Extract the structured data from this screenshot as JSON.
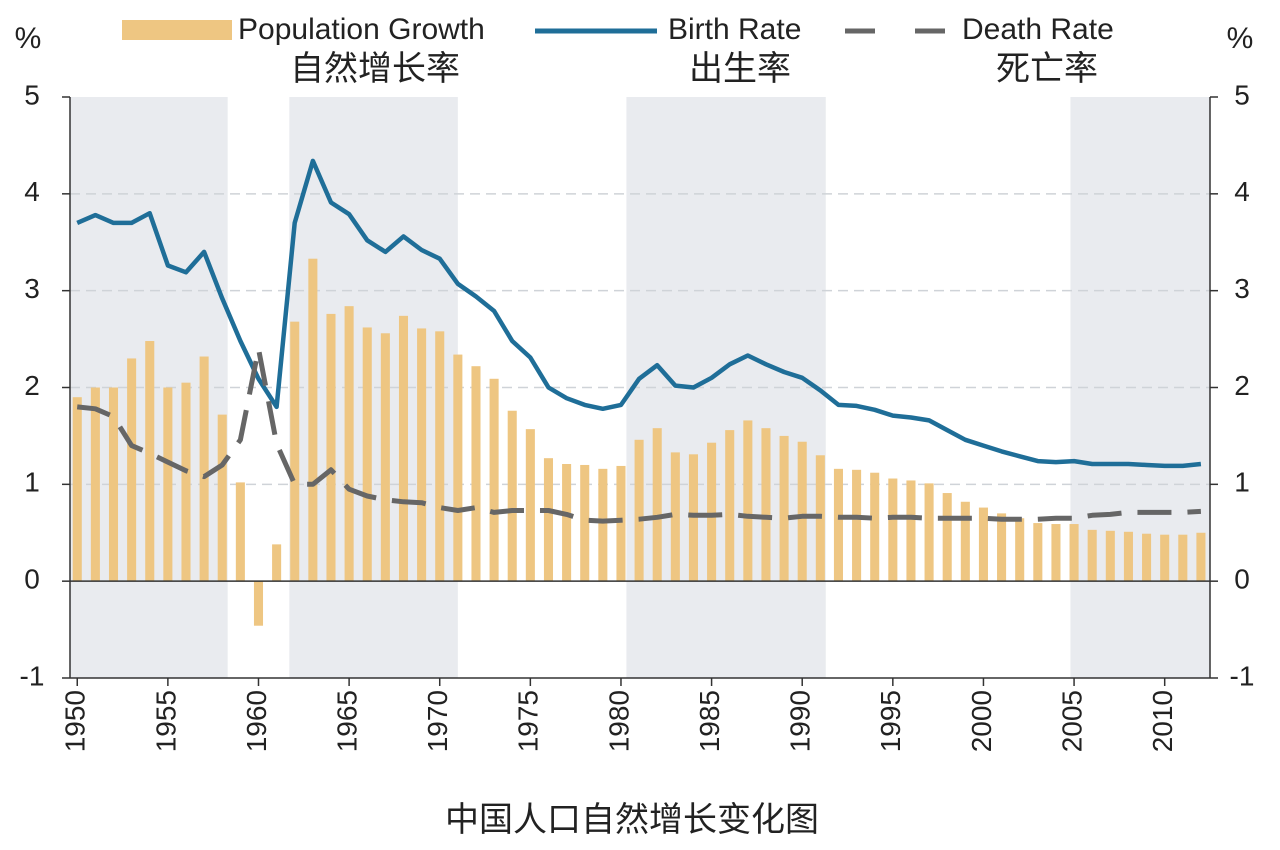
{
  "chart_data": {
    "type": "combo",
    "title": "中国人口自然增长变化图",
    "y_label": "%",
    "y2_label": "%",
    "x": [
      1950,
      1951,
      1952,
      1953,
      1954,
      1955,
      1956,
      1957,
      1958,
      1959,
      1960,
      1961,
      1962,
      1963,
      1964,
      1965,
      1966,
      1967,
      1968,
      1969,
      1970,
      1971,
      1972,
      1973,
      1974,
      1975,
      1976,
      1977,
      1978,
      1979,
      1980,
      1981,
      1982,
      1983,
      1984,
      1985,
      1986,
      1987,
      1988,
      1989,
      1990,
      1991,
      1992,
      1993,
      1994,
      1995,
      1996,
      1997,
      1998,
      1999,
      2000,
      2001,
      2002,
      2003,
      2004,
      2005,
      2006,
      2007,
      2008,
      2009,
      2010,
      2011,
      2012
    ],
    "xlim": [
      1949.6,
      2012.5
    ],
    "xticks": [
      1950,
      1955,
      1960,
      1965,
      1970,
      1975,
      1980,
      1985,
      1990,
      1995,
      2000,
      2005,
      2010
    ],
    "ylim": [
      -1,
      5
    ],
    "yticks": [
      -1,
      0,
      1,
      2,
      3,
      4,
      5
    ],
    "y2lim": [
      -1,
      5
    ],
    "y2ticks": [
      -1,
      0,
      1,
      2,
      3,
      4,
      5
    ],
    "grid": true,
    "shaded_spans": [
      [
        1949.6,
        1958.3
      ],
      [
        1961.7,
        1971.0
      ],
      [
        1980.3,
        1991.3
      ],
      [
        2004.8,
        2012.5
      ]
    ],
    "series": [
      {
        "name": "Population Growth",
        "name_zh": "自然增长率",
        "kind": "bar",
        "color": "#eec682",
        "values": [
          1.9,
          2.0,
          2.0,
          2.3,
          2.48,
          2.0,
          2.05,
          2.32,
          1.72,
          1.02,
          -0.46,
          0.38,
          2.68,
          3.33,
          2.76,
          2.84,
          2.62,
          2.56,
          2.74,
          2.61,
          2.58,
          2.34,
          2.22,
          2.09,
          1.76,
          1.57,
          1.27,
          1.21,
          1.2,
          1.16,
          1.19,
          1.46,
          1.58,
          1.33,
          1.31,
          1.43,
          1.56,
          1.66,
          1.58,
          1.5,
          1.44,
          1.3,
          1.16,
          1.15,
          1.12,
          1.06,
          1.04,
          1.01,
          0.91,
          0.82,
          0.76,
          0.7,
          0.65,
          0.6,
          0.59,
          0.59,
          0.53,
          0.52,
          0.51,
          0.49,
          0.48,
          0.48,
          0.5
        ]
      },
      {
        "name": "Birth Rate",
        "name_zh": "出生率",
        "kind": "line",
        "color": "#1f6e98",
        "values": [
          3.7,
          3.78,
          3.7,
          3.7,
          3.8,
          3.26,
          3.19,
          3.4,
          2.92,
          2.48,
          2.09,
          1.8,
          3.7,
          4.34,
          3.91,
          3.79,
          3.52,
          3.4,
          3.56,
          3.42,
          3.33,
          3.07,
          2.94,
          2.79,
          2.48,
          2.31,
          2.0,
          1.89,
          1.82,
          1.78,
          1.82,
          2.09,
          2.23,
          2.02,
          2.0,
          2.1,
          2.24,
          2.33,
          2.24,
          2.16,
          2.1,
          1.97,
          1.82,
          1.81,
          1.77,
          1.71,
          1.69,
          1.66,
          1.56,
          1.46,
          1.4,
          1.34,
          1.29,
          1.24,
          1.23,
          1.24,
          1.21,
          1.21,
          1.21,
          1.2,
          1.19,
          1.19,
          1.21
        ]
      },
      {
        "name": "Death Rate",
        "name_zh": "死亡率",
        "kind": "dashed",
        "color": "#666666",
        "values": [
          1.8,
          1.78,
          1.7,
          1.4,
          1.32,
          1.23,
          1.14,
          1.08,
          1.2,
          1.46,
          2.4,
          1.42,
          1.0,
          1.0,
          1.15,
          0.95,
          0.88,
          0.84,
          0.82,
          0.81,
          0.76,
          0.73,
          0.76,
          0.71,
          0.73,
          0.73,
          0.73,
          0.69,
          0.63,
          0.62,
          0.63,
          0.64,
          0.66,
          0.69,
          0.68,
          0.68,
          0.69,
          0.67,
          0.66,
          0.65,
          0.67,
          0.67,
          0.66,
          0.66,
          0.65,
          0.66,
          0.66,
          0.65,
          0.65,
          0.65,
          0.65,
          0.64,
          0.64,
          0.64,
          0.65,
          0.65,
          0.68,
          0.69,
          0.71,
          0.71,
          0.71,
          0.71,
          0.72
        ]
      }
    ]
  }
}
